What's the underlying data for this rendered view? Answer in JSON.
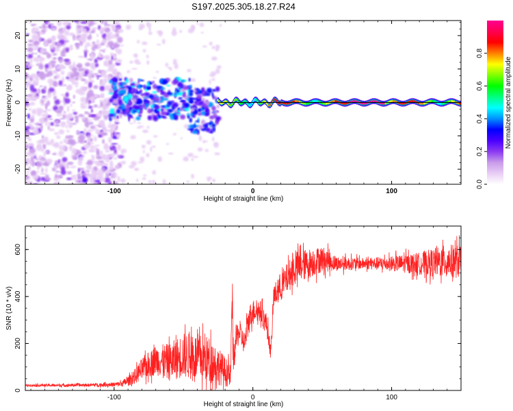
{
  "title": "S197.2025.305.18.27.R24",
  "chart_data": [
    {
      "type": "heatmap",
      "name": "spectrogram",
      "xlabel": "Height of straight line (km)",
      "ylabel": "Frequency (Hz)",
      "xlim": [
        -164,
        150
      ],
      "ylim": [
        -24.5,
        24.5
      ],
      "xticks": [
        -100,
        0,
        100
      ],
      "yticks": [
        -20,
        -10,
        0,
        10,
        20
      ],
      "colorbar": {
        "label": "Normalized spectral amplitude",
        "range": [
          0,
          1
        ],
        "ticks": [
          0.0,
          0.2,
          0.4,
          0.6,
          0.8
        ],
        "tick_labels": [
          "0.0",
          "0.2",
          "0.4",
          "0.6",
          "0.8"
        ],
        "colormap": [
          "#ffffff",
          "#e8cdf5",
          "#c99bea",
          "#8a3af0",
          "#4a00ff",
          "#0000ff",
          "#0090ff",
          "#00ffff",
          "#00ff80",
          "#00ff00",
          "#80ff00",
          "#ffff00",
          "#ff8000",
          "#ff0000",
          "#ff0050",
          "#ff0090"
        ]
      },
      "regions": [
        {
          "x_range": [
            -164,
            -103
          ],
          "f_range": [
            -24.5,
            24.5
          ],
          "amplitude": "0.05-0.2",
          "description": "broadband noise"
        },
        {
          "x_range": [
            -103,
            -45
          ],
          "f_range": [
            -5,
            7
          ],
          "amplitude": "0.2-0.5"
        },
        {
          "x_range": [
            -45,
            -25
          ],
          "f_range": [
            -9,
            4
          ],
          "amplitude": "0.2-0.4"
        },
        {
          "x_range": [
            -25,
            150
          ],
          "f_range": [
            -1.5,
            1.5
          ],
          "amplitude": "0.3-1.0",
          "description": "narrow carrier line near 0 Hz"
        }
      ]
    },
    {
      "type": "line",
      "name": "snr",
      "xlabel": "Height of straight line (km)",
      "ylabel": "SNR (10 * v/v)",
      "xlim": [
        -164,
        150
      ],
      "ylim": [
        0,
        700
      ],
      "xticks": [
        -100,
        0,
        100
      ],
      "yticks": [
        0,
        200,
        400,
        600
      ],
      "color": "#ff2020",
      "series": [
        {
          "name": "SNR",
          "x": [
            -164,
            -140,
            -120,
            -100,
            -95,
            -90,
            -85,
            -80,
            -70,
            -60,
            -50,
            -40,
            -30,
            -20,
            -16,
            -15,
            -14,
            -12,
            -10,
            -6,
            -3,
            0,
            5,
            10,
            13,
            15,
            20,
            25,
            30,
            40,
            50,
            60,
            80,
            100,
            120,
            140,
            150
          ],
          "mean": [
            22,
            22,
            23,
            25,
            28,
            40,
            60,
            90,
            130,
            120,
            150,
            140,
            130,
            80,
            60,
            400,
            120,
            220,
            250,
            200,
            300,
            340,
            340,
            280,
            160,
            400,
            440,
            480,
            520,
            540,
            560,
            540,
            540,
            540,
            540,
            550,
            550
          ],
          "spread": [
            6,
            8,
            8,
            12,
            15,
            25,
            40,
            60,
            80,
            100,
            120,
            130,
            120,
            80,
            60,
            200,
            60,
            80,
            60,
            60,
            80,
            60,
            60,
            60,
            40,
            60,
            80,
            80,
            90,
            80,
            70,
            40,
            30,
            40,
            60,
            90,
            90
          ]
        }
      ]
    }
  ]
}
